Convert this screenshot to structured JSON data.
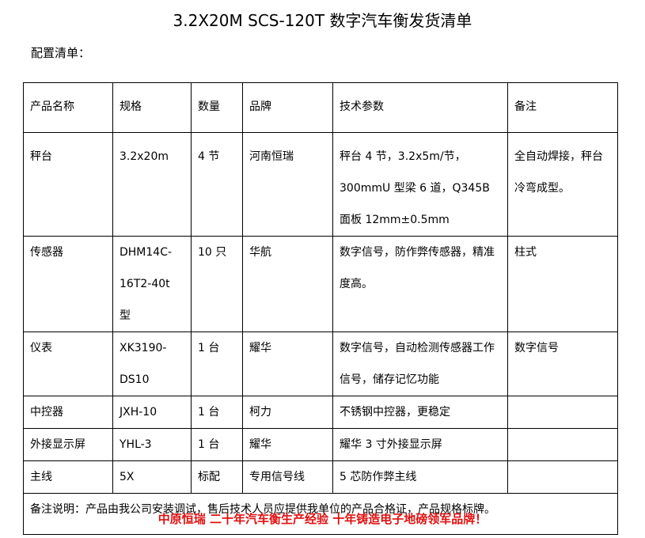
{
  "title": "3.2X20M SCS-120T 数字汽车衡发货清单",
  "subtitle": "配置清单：",
  "headers": [
    "产品名称",
    "规格",
    "数量",
    "品牌",
    "技术参数",
    "备注"
  ],
  "rows": [
    [
      "秤台",
      "3.2x20m",
      "4 节",
      "河南恒瑞",
      "秤台 4 节，3.2x5m/节，300mmU 型梁 6 道，Q345B 面板 12mm±0.5mm",
      "全自动焊接，秤台冷弯成型。"
    ],
    [
      "传感器",
      "DHM14C-16T2-40t 型",
      "10 只",
      "华航",
      "数字信号，防作弊传感器，精准度高。",
      "柱式"
    ],
    [
      "仪表",
      "XK3190-DS10",
      "1 台",
      "耀华",
      "数字信号，自动检测传感器工作信号，储存记忆功能",
      "数字信号"
    ],
    [
      "中控器",
      "JXH-10",
      "1 台",
      "柯力",
      "不锈钢中控器，更稳定",
      ""
    ],
    [
      "外接显示屏",
      "YHL-3",
      "1 台",
      "耀华",
      "耀华 3 寸外接显示屏",
      ""
    ],
    [
      "主线",
      "5X",
      "标配",
      "专用信号线",
      "5 芯防作弊主线",
      ""
    ]
  ],
  "note": "备注说明：产品由我公司安装调试，售后技术人员应提供我单位的产品合格证，产品规格标牌。",
  "footer": "中原恒瑞 二十年汽车衡生产经验 十年铸造电子地磅领军品牌！"
}
